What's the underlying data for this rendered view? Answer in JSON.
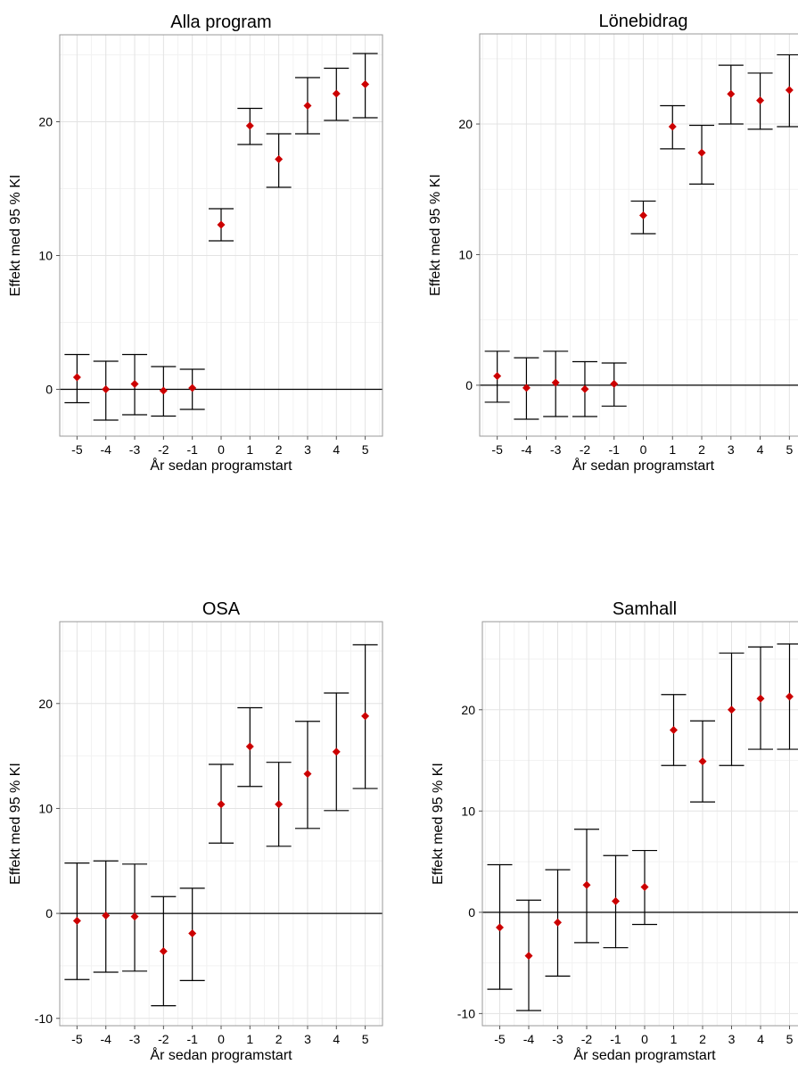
{
  "chart_data": [
    {
      "type": "errorbar",
      "title": "Alla program",
      "xlabel": "År sedan programstart",
      "ylabel": "Effekt med 95 % KI",
      "x": [
        -5,
        -4,
        -3,
        -2,
        -1,
        0,
        1,
        2,
        3,
        4,
        5
      ],
      "x_tick_labels": [
        "-5",
        "-4",
        "-3",
        "-2",
        "-1",
        "0",
        "1",
        "2",
        "3",
        "4",
        "5"
      ],
      "y": [
        0.9,
        0.0,
        0.4,
        -0.1,
        0.1,
        12.3,
        19.7,
        17.2,
        21.2,
        22.1,
        22.8
      ],
      "ci_low": [
        -1.0,
        -2.3,
        -1.9,
        -2.0,
        -1.5,
        11.1,
        18.3,
        15.1,
        19.1,
        20.1,
        20.3
      ],
      "ci_high": [
        2.6,
        2.1,
        2.6,
        1.7,
        1.5,
        13.5,
        21.0,
        19.1,
        23.3,
        24.0,
        25.1
      ],
      "y_ticks": [
        0,
        10,
        20
      ],
      "y_tick_labels": [
        "0",
        "10",
        "20"
      ],
      "ylim": [
        -3.5,
        26.5
      ],
      "reference_line": 0,
      "grid": true,
      "point_color": "#cc0000"
    },
    {
      "type": "errorbar",
      "title": "Lönebidrag",
      "xlabel": "År sedan programstart",
      "ylabel": "Effekt med 95 % KI",
      "x": [
        -5,
        -4,
        -3,
        -2,
        -1,
        0,
        1,
        2,
        3,
        4,
        5
      ],
      "x_tick_labels": [
        "-5",
        "-4",
        "-3",
        "-2",
        "-1",
        "0",
        "1",
        "2",
        "3",
        "4",
        "5"
      ],
      "y": [
        0.7,
        -0.2,
        0.2,
        -0.3,
        0.1,
        13.0,
        19.8,
        17.8,
        22.3,
        21.8,
        22.6
      ],
      "ci_low": [
        -1.3,
        -2.6,
        -2.4,
        -2.4,
        -1.6,
        11.6,
        18.1,
        15.4,
        20.0,
        19.6,
        19.8
      ],
      "ci_high": [
        2.6,
        2.1,
        2.6,
        1.8,
        1.7,
        14.1,
        21.4,
        19.9,
        24.5,
        23.9,
        25.3
      ],
      "y_ticks": [
        0,
        10,
        20
      ],
      "y_tick_labels": [
        "0",
        "10",
        "20"
      ],
      "ylim": [
        -3.9,
        26.9
      ],
      "reference_line": 0,
      "grid": true,
      "point_color": "#cc0000"
    },
    {
      "type": "errorbar",
      "title": "OSA",
      "xlabel": "År sedan programstart",
      "ylabel": "Effekt med 95 % KI",
      "x": [
        -5,
        -4,
        -3,
        -2,
        -1,
        0,
        1,
        2,
        3,
        4,
        5
      ],
      "x_tick_labels": [
        "-5",
        "-4",
        "-3",
        "-2",
        "-1",
        "0",
        "1",
        "2",
        "3",
        "4",
        "5"
      ],
      "y": [
        -0.7,
        -0.2,
        -0.3,
        -3.6,
        -1.9,
        10.4,
        15.9,
        10.4,
        13.3,
        15.4,
        18.8
      ],
      "ci_low": [
        -6.3,
        -5.6,
        -5.5,
        -8.8,
        -6.4,
        6.7,
        12.1,
        6.4,
        8.1,
        9.8,
        11.9
      ],
      "ci_high": [
        4.8,
        5.0,
        4.7,
        1.6,
        2.4,
        14.2,
        19.6,
        14.4,
        18.3,
        21.0,
        25.6
      ],
      "y_ticks": [
        -10,
        0,
        10,
        20
      ],
      "y_tick_labels": [
        "-10",
        "0",
        "10",
        "20"
      ],
      "ylim": [
        -10.7,
        27.8
      ],
      "reference_line": 0,
      "grid": true,
      "point_color": "#cc0000"
    },
    {
      "type": "errorbar",
      "title": "Samhall",
      "xlabel": "År sedan programstart",
      "ylabel": "Effekt med 95 % KI",
      "x": [
        -5,
        -4,
        -3,
        -2,
        -1,
        0,
        1,
        2,
        3,
        4,
        5
      ],
      "x_tick_labels": [
        "-5",
        "-4",
        "-3",
        "-2",
        "-1",
        "0",
        "1",
        "2",
        "3",
        "4",
        "5"
      ],
      "y": [
        -1.5,
        -4.3,
        -1.0,
        2.7,
        1.1,
        2.5,
        18.0,
        14.9,
        20.0,
        21.1,
        21.3
      ],
      "ci_low": [
        -7.6,
        -9.7,
        -6.3,
        -3.0,
        -3.5,
        -1.2,
        14.5,
        10.9,
        14.5,
        16.1,
        16.1
      ],
      "ci_high": [
        4.7,
        1.2,
        4.2,
        8.2,
        5.6,
        6.1,
        21.5,
        18.9,
        25.6,
        26.2,
        26.5
      ],
      "y_ticks": [
        -10,
        0,
        10,
        20
      ],
      "y_tick_labels": [
        "-10",
        "0",
        "10",
        "20"
      ],
      "ylim": [
        -11.2,
        28.7
      ],
      "reference_line": 0,
      "grid": true,
      "point_color": "#cc0000"
    }
  ]
}
